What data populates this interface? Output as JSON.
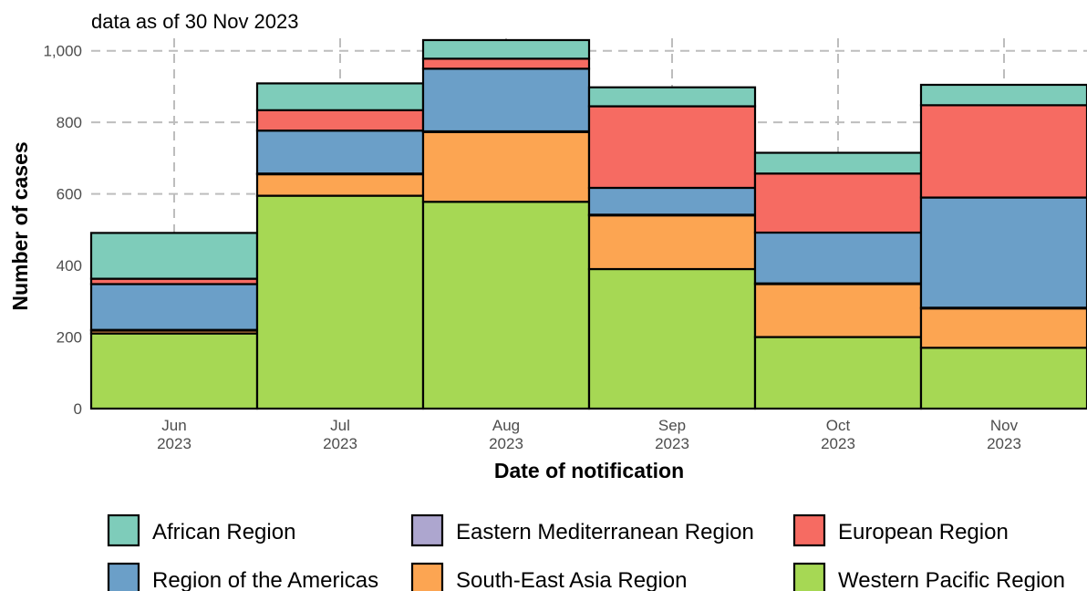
{
  "chart_data": {
    "type": "bar",
    "stacked": true,
    "subtitle": "data as of 30 Nov 2023",
    "xlabel": "Date of notification",
    "ylabel": "Number of cases",
    "ylim": [
      0,
      1035
    ],
    "yticks": [
      0,
      200,
      400,
      600,
      800,
      1000
    ],
    "ytick_labels": [
      "0",
      "200",
      "400",
      "600",
      "800",
      "1,000"
    ],
    "grid": true,
    "legend_position": "bottom",
    "categories": [
      {
        "month": "Jun",
        "year": "2023"
      },
      {
        "month": "Jul",
        "year": "2023"
      },
      {
        "month": "Aug",
        "year": "2023"
      },
      {
        "month": "Sep",
        "year": "2023"
      },
      {
        "month": "Oct",
        "year": "2023"
      },
      {
        "month": "Nov",
        "year": "2023"
      }
    ],
    "series": [
      {
        "name": "Western Pacific Region",
        "color": "#a6d854",
        "values": [
          210,
          595,
          578,
          390,
          200,
          170
        ]
      },
      {
        "name": "South-East Asia Region",
        "color": "#fca552",
        "values": [
          8,
          60,
          195,
          150,
          148,
          110
        ]
      },
      {
        "name": "Eastern Mediterranean Region",
        "color": "#ada6cf",
        "values": [
          2,
          2,
          2,
          2,
          2,
          2
        ]
      },
      {
        "name": "Region of the Americas",
        "color": "#6b9fc8",
        "values": [
          128,
          120,
          175,
          75,
          142,
          308
        ]
      },
      {
        "name": "European Region",
        "color": "#f66b62",
        "values": [
          15,
          57,
          28,
          228,
          165,
          258
        ]
      },
      {
        "name": "African Region",
        "color": "#7eccba",
        "values": [
          128,
          75,
          52,
          53,
          58,
          57
        ]
      }
    ],
    "legend_order": [
      "African Region",
      "Eastern Mediterranean Region",
      "European Region",
      "Region of the Americas",
      "South-East Asia Region",
      "Western Pacific Region"
    ]
  }
}
